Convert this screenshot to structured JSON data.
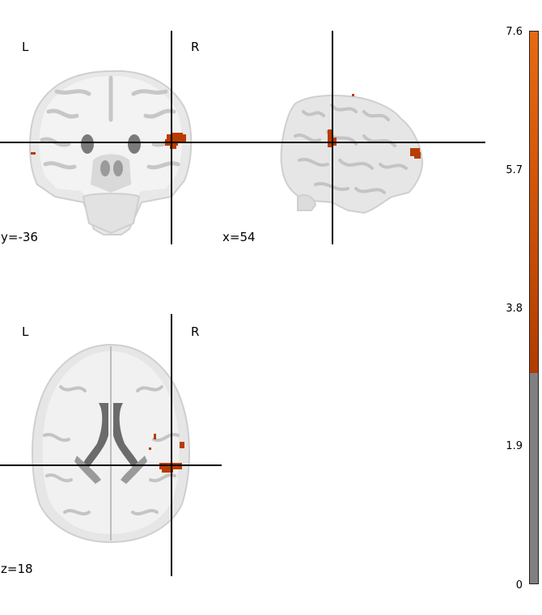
{
  "views": {
    "coronal": {
      "left_label": "L",
      "right_label": "R",
      "coord_label": "y=-36"
    },
    "sagittal": {
      "coord_label": "x=54"
    },
    "axial": {
      "left_label": "L",
      "right_label": "R",
      "coord_label": "z=18"
    }
  },
  "colorbar": {
    "ticks": [
      "7.6",
      "5.7",
      "3.8",
      "1.9",
      "0"
    ],
    "tick_values": [
      7.6,
      5.7,
      3.8,
      1.9,
      0
    ],
    "min": 0,
    "max": 7.6,
    "threshold": 2.9,
    "colors": {
      "high": "#e66a14",
      "low": "#b23c00",
      "below_threshold": "#808080"
    }
  },
  "colors": {
    "activation": "#b83c00",
    "brain_light": "#ececec",
    "brain_mid": "#c9c9c9",
    "brain_dark": "#6b6b6b",
    "crosshair": "#000000"
  }
}
